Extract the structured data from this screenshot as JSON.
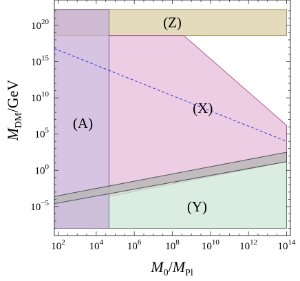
{
  "chart_data": {
    "type": "area",
    "title": "",
    "x_scale": "log10",
    "y_scale": "log10",
    "xlabel": {
      "main": "M",
      "sub1": "0",
      "sep": "/",
      "main2": "M",
      "sub2": "Pl"
    },
    "ylabel": {
      "main": "M",
      "sub": "DM",
      "rest": "/GeV"
    },
    "xlim_log10": [
      1.8,
      14.2
    ],
    "ylim_log10": [
      -9,
      23.5
    ],
    "x_ticks": [
      {
        "base": "10",
        "exp": "2",
        "value": 2
      },
      {
        "base": "10",
        "exp": "4",
        "value": 4
      },
      {
        "base": "10",
        "exp": "6",
        "value": 6
      },
      {
        "base": "10",
        "exp": "8",
        "value": 8
      },
      {
        "base": "10",
        "exp": "10",
        "value": 10
      },
      {
        "base": "10",
        "exp": "12",
        "value": 12
      },
      {
        "base": "10",
        "exp": "14",
        "value": 14
      }
    ],
    "y_ticks": [
      {
        "base": "10",
        "exp": "−5",
        "value": -5
      },
      {
        "base": "10",
        "exp": "0",
        "value": 0
      },
      {
        "base": "10",
        "exp": "5",
        "value": 5
      },
      {
        "base": "10",
        "exp": "10",
        "value": 10
      },
      {
        "base": "10",
        "exp": "15",
        "value": 15
      },
      {
        "base": "10",
        "exp": "20",
        "value": 20
      }
    ],
    "regions": [
      {
        "label": "(Z)",
        "fill": "#d9cfa6",
        "stroke": "#a69a6a",
        "polygon": [
          [
            1.8,
            22.2
          ],
          [
            14.0,
            22.2
          ],
          [
            14.0,
            18.6
          ],
          [
            1.8,
            18.6
          ]
        ],
        "label_pos": [
          8.0,
          20.4
        ]
      },
      {
        "label": "(X)",
        "fill": "#e7bcd9",
        "stroke": "#b05a90",
        "polygon": [
          [
            4.67,
            18.6
          ],
          [
            8.6,
            18.6
          ],
          [
            14.0,
            6.2
          ],
          [
            14.0,
            1.2
          ],
          [
            4.67,
            -3.6
          ]
        ],
        "label_pos": [
          9.6,
          8.6
        ]
      },
      {
        "label": "(Y)",
        "fill": "#cfe6d6",
        "stroke": "#4f8f62",
        "polygon": [
          [
            1.8,
            -8.0
          ],
          [
            14.0,
            -8.0
          ],
          [
            14.0,
            1.2
          ],
          [
            1.8,
            -4.6
          ]
        ],
        "label_pos": [
          9.3,
          -5.0
        ]
      },
      {
        "label": "(A)",
        "fill": "#c8b0d8",
        "stroke": "#7a6aa8",
        "polygon": [
          [
            1.8,
            22.2
          ],
          [
            4.67,
            22.2
          ],
          [
            4.67,
            -8.0
          ],
          [
            1.8,
            -8.0
          ]
        ],
        "label_pos": [
          3.3,
          6.5
        ]
      }
    ],
    "bands": [
      {
        "fill": "#b7b7b7",
        "stroke": "#555555",
        "upper": [
          [
            1.8,
            -3.6
          ],
          [
            14.0,
            2.5
          ]
        ],
        "lower": [
          [
            1.8,
            -4.6
          ],
          [
            14.0,
            1.2
          ]
        ]
      }
    ],
    "lines": [
      {
        "style": "dashed",
        "color": "#3333dd",
        "points": [
          [
            1.8,
            16.8
          ],
          [
            14.0,
            4.0
          ]
        ]
      }
    ]
  }
}
